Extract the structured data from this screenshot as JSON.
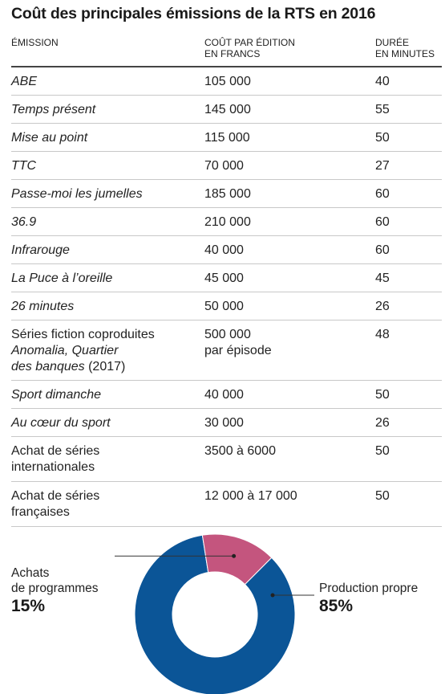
{
  "title": "Coût des principales émissions de la RTS en 2016",
  "headers": {
    "emission": "ÉMISSION",
    "cost_line1": "COÛT PAR ÉDITION",
    "cost_line2": "EN FRANCS",
    "dur_line1": "DURÉE",
    "dur_line2": "EN MINUTES"
  },
  "rows": [
    {
      "name": "ABE",
      "italic": true,
      "cost": "105 000",
      "duration": "40"
    },
    {
      "name": "Temps présent",
      "italic": true,
      "cost": "145 000",
      "duration": "55"
    },
    {
      "name": "Mise au point",
      "italic": true,
      "cost": "115 000",
      "duration": "50"
    },
    {
      "name": "TTC",
      "italic": true,
      "cost": "70 000",
      "duration": "27"
    },
    {
      "name": "Passe-moi les jumelles",
      "italic": true,
      "cost": "185 000",
      "duration": "60"
    },
    {
      "name": "36.9",
      "italic": true,
      "cost": "210 000",
      "duration": "60"
    },
    {
      "name": "Infrarouge",
      "italic": true,
      "cost": "40 000",
      "duration": "60"
    },
    {
      "name": "La Puce à l’oreille",
      "italic": true,
      "cost": "45 000",
      "duration": "45"
    },
    {
      "name": "26 minutes",
      "italic": true,
      "cost": "50 000",
      "duration": "26"
    },
    {
      "name_line1": "Séries fiction coproduites",
      "name_line2": "Anomalia, Quartier",
      "name_line3a": "des banques",
      "name_line3b": " (2017)",
      "cost_line1": "500 000",
      "cost_line2": "par épisode",
      "duration": "48"
    },
    {
      "name": "Sport dimanche",
      "italic": true,
      "cost": "40 000",
      "duration": "50"
    },
    {
      "name": "Au cœur du sport",
      "italic": true,
      "cost": "30 000",
      "duration": "26"
    },
    {
      "name_line1": "Achat de séries",
      "name_line2": "internationales",
      "cost": "3500 à 6000",
      "duration": "50"
    },
    {
      "name_line1": "Achat de séries",
      "name_line2": "françaises",
      "cost": "12 000 à 17 000",
      "duration": "50"
    }
  ],
  "chart_data": {
    "type": "pie",
    "donut": true,
    "slices": [
      {
        "label_line1": "Production propre",
        "value": 85,
        "pct_label": "85%",
        "color": "#0b5597"
      },
      {
        "label_line1": "Achats",
        "label_line2": "de programmes",
        "value": 15,
        "pct_label": "15%",
        "color": "#c4557e"
      }
    ]
  }
}
